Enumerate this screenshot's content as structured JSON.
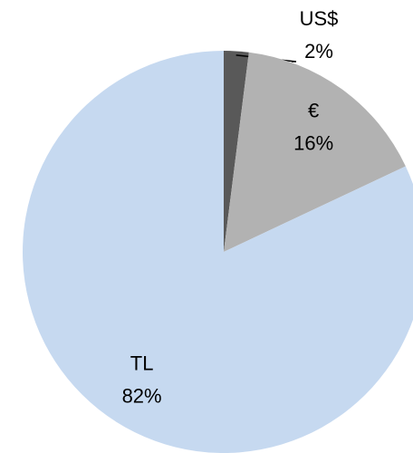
{
  "chart_data": {
    "type": "pie",
    "categories": [
      "US$",
      "€",
      "TL"
    ],
    "values": [
      2,
      16,
      82
    ],
    "value_labels": [
      "2%",
      "16%",
      "82%"
    ],
    "colors": [
      "#595959",
      "#b2b2b2",
      "#c6d9f0"
    ]
  }
}
